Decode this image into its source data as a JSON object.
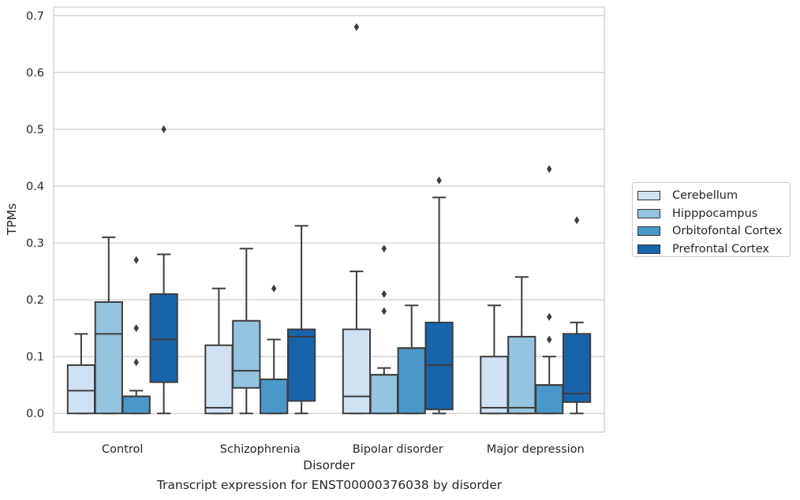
{
  "chart_data": {
    "type": "box",
    "xlabel": "Disorder",
    "ylabel": "TPMs",
    "ylim": [
      -0.033,
      0.715
    ],
    "yticks": [
      "0.0",
      "0.1",
      "0.2",
      "0.3",
      "0.4",
      "0.5",
      "0.6",
      "0.7"
    ],
    "grid": "horizontal",
    "legend_position": "right",
    "categories": [
      "Control",
      "Schizophrenia",
      "Bipolar disorder",
      "Major depression"
    ],
    "series": [
      {
        "name": "Cerebellum",
        "color": "#d0e1f2",
        "boxes": [
          {
            "whislo": 0.0,
            "q1": 0.0,
            "med": 0.04,
            "q3": 0.085,
            "whishi": 0.14,
            "fliers": []
          },
          {
            "whislo": 0.0,
            "q1": 0.0,
            "med": 0.01,
            "q3": 0.12,
            "whishi": 0.22,
            "fliers": []
          },
          {
            "whislo": 0.0,
            "q1": 0.0,
            "med": 0.03,
            "q3": 0.148,
            "whishi": 0.25,
            "fliers": [
              0.68
            ]
          },
          {
            "whislo": 0.0,
            "q1": 0.0,
            "med": 0.01,
            "q3": 0.1,
            "whishi": 0.19,
            "fliers": []
          }
        ]
      },
      {
        "name": "Hipppocampus",
        "color": "#94c4df",
        "boxes": [
          {
            "whislo": 0.0,
            "q1": 0.0,
            "med": 0.14,
            "q3": 0.196,
            "whishi": 0.31,
            "fliers": []
          },
          {
            "whislo": 0.0,
            "q1": 0.045,
            "med": 0.075,
            "q3": 0.163,
            "whishi": 0.29,
            "fliers": []
          },
          {
            "whislo": 0.0,
            "q1": 0.0,
            "med": 0.068,
            "q3": 0.068,
            "whishi": 0.08,
            "fliers": [
              0.29,
              0.21,
              0.18
            ]
          },
          {
            "whislo": 0.0,
            "q1": 0.0,
            "med": 0.01,
            "q3": 0.135,
            "whishi": 0.24,
            "fliers": []
          }
        ]
      },
      {
        "name": "Orbitofontal Cortex",
        "color": "#4a98c9",
        "boxes": [
          {
            "whislo": 0.0,
            "q1": 0.0,
            "med": 0.03,
            "q3": 0.03,
            "whishi": 0.04,
            "fliers": [
              0.27,
              0.15,
              0.09
            ]
          },
          {
            "whislo": 0.0,
            "q1": 0.0,
            "med": 0.06,
            "q3": 0.06,
            "whishi": 0.13,
            "fliers": [
              0.22
            ]
          },
          {
            "whislo": 0.0,
            "q1": 0.0,
            "med": 0.115,
            "q3": 0.115,
            "whishi": 0.19,
            "fliers": []
          },
          {
            "whislo": 0.0,
            "q1": 0.0,
            "med": 0.05,
            "q3": 0.05,
            "whishi": 0.1,
            "fliers": [
              0.43,
              0.17,
              0.13
            ]
          }
        ]
      },
      {
        "name": "Prefrontal Cortex",
        "color": "#1764ab",
        "boxes": [
          {
            "whislo": 0.0,
            "q1": 0.055,
            "med": 0.13,
            "q3": 0.21,
            "whishi": 0.28,
            "fliers": [
              0.5
            ]
          },
          {
            "whislo": 0.0,
            "q1": 0.022,
            "med": 0.135,
            "q3": 0.148,
            "whishi": 0.33,
            "fliers": []
          },
          {
            "whislo": 0.0,
            "q1": 0.007,
            "med": 0.085,
            "q3": 0.16,
            "whishi": 0.38,
            "fliers": [
              0.41
            ]
          },
          {
            "whislo": 0.0,
            "q1": 0.02,
            "med": 0.035,
            "q3": 0.14,
            "whishi": 0.16,
            "fliers": [
              0.34
            ]
          }
        ]
      }
    ]
  },
  "caption": "Transcript expression for ENST00000376038 by disorder"
}
